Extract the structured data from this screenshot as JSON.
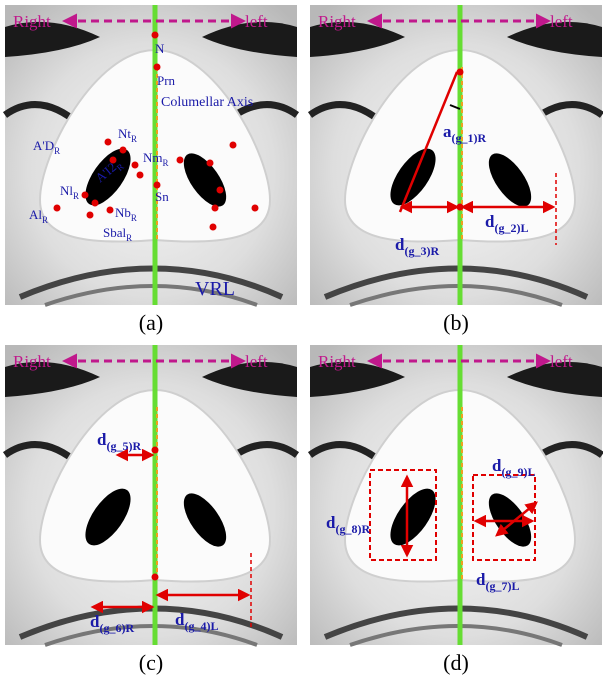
{
  "panels": [
    {
      "caption": "(a)",
      "right": "Right",
      "left": "left",
      "labels": [
        {
          "main": "N"
        },
        {
          "main": "Prn"
        },
        {
          "main": "Columellar Axis"
        },
        {
          "main": "A'D",
          "sub": "R"
        },
        {
          "main": "Nt",
          "sub": "R"
        },
        {
          "main": "Nm",
          "sub": "R"
        },
        {
          "main": "A'I2",
          "sub": "R"
        },
        {
          "main": "Nl",
          "sub": "R"
        },
        {
          "main": "Nb",
          "sub": "R"
        },
        {
          "main": "Al",
          "sub": "R"
        },
        {
          "main": "Sbal",
          "sub": "R"
        },
        {
          "main": "Sn"
        },
        {
          "main": "VRL"
        }
      ]
    },
    {
      "caption": "(b)",
      "right": "Right",
      "left": "left",
      "labels": [
        {
          "main": "a",
          "sub": "(g_1)R"
        },
        {
          "main": "d",
          "sub": "(g_3)R"
        },
        {
          "main": "d",
          "sub": "(g_2)L"
        }
      ]
    },
    {
      "caption": "(c)",
      "right": "Right",
      "left": "left",
      "labels": [
        {
          "main": "d",
          "sub": "(g_5)R"
        },
        {
          "main": "d",
          "sub": "(g_6)R"
        },
        {
          "main": "d",
          "sub": "(g_4)L"
        }
      ]
    },
    {
      "caption": "(d)",
      "right": "Right",
      "left": "left",
      "labels": [
        {
          "main": "d",
          "sub": "(g_8)R"
        },
        {
          "main": "d",
          "sub": "(g_9)L"
        },
        {
          "main": "d",
          "sub": "(g_7)L"
        }
      ]
    }
  ]
}
